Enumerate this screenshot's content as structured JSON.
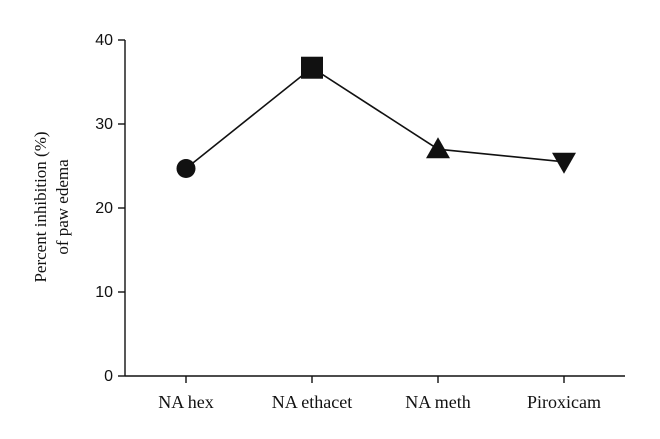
{
  "chart_data": {
    "type": "line",
    "title": "",
    "xlabel": "",
    "ylabel_lines": [
      "Percent inhibition (%)",
      "of paw edema"
    ],
    "categories": [
      "NA hex",
      "NA ethacet",
      "NA meth",
      "Piroxicam"
    ],
    "values": [
      24.7,
      36.7,
      27.0,
      25.5
    ],
    "markers": [
      "circle",
      "square",
      "triangle-up",
      "triangle-down"
    ],
    "ylim": [
      0,
      40
    ],
    "yticks": [
      0,
      10,
      20,
      30,
      40
    ],
    "grid": false,
    "color": "#111111"
  }
}
